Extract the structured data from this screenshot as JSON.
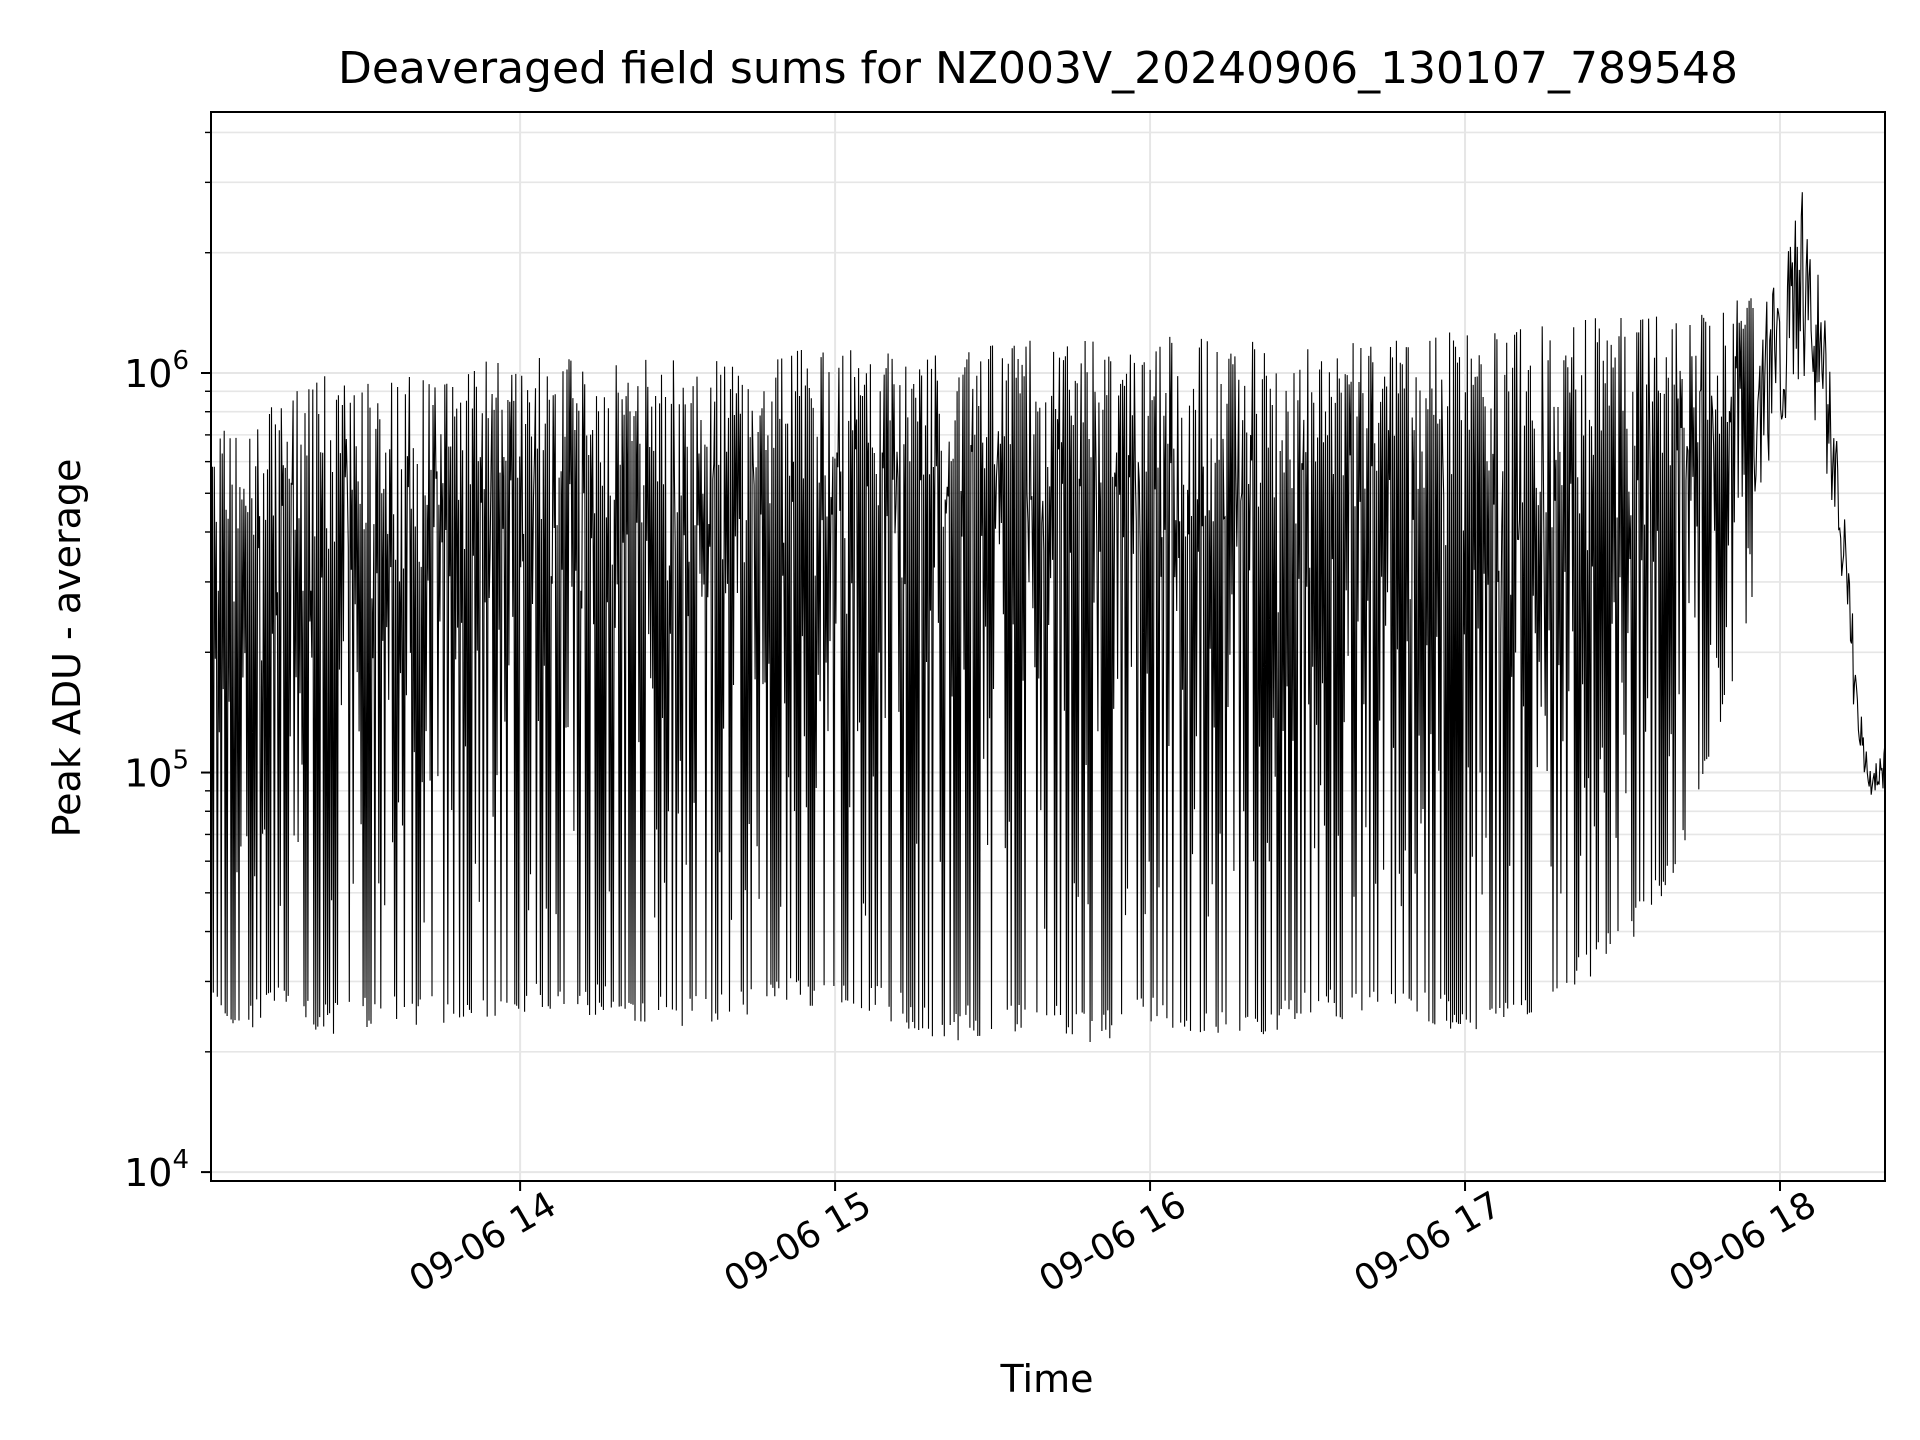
{
  "chart_data": {
    "type": "line",
    "title": "Deaveraged field sums for NZ003V_20240906_130107_789548",
    "xlabel": "Time",
    "ylabel": "Peak ADU - average",
    "yscale": "log",
    "ylim": [
      9500,
      4500000
    ],
    "xlim": [
      "2024-09-06 13:01:07",
      "2024-09-06 18:20:00"
    ],
    "grid": true,
    "line_color": "#000000",
    "x_ticks": [
      {
        "value": "2024-09-06 14:00",
        "label": "09-06 14"
      },
      {
        "value": "2024-09-06 15:00",
        "label": "09-06 15"
      },
      {
        "value": "2024-09-06 16:00",
        "label": "09-06 16"
      },
      {
        "value": "2024-09-06 17:00",
        "label": "09-06 17"
      },
      {
        "value": "2024-09-06 18:00",
        "label": "09-06 18"
      }
    ],
    "y_ticks": [
      {
        "value": 10000,
        "base": "10",
        "exp": "4"
      },
      {
        "value": 100000,
        "base": "10",
        "exp": "5"
      },
      {
        "value": 1000000,
        "base": "10",
        "exp": "6"
      }
    ],
    "series": [
      {
        "x": [
          "2024-09-06 13:01",
          "2024-09-06 13:07",
          "2024-09-06 13:15",
          "2024-09-06 13:23",
          "2024-09-06 13:31",
          "2024-09-06 13:40",
          "2024-09-06 13:50",
          "2024-09-06 14:00",
          "2024-09-06 14:10",
          "2024-09-06 14:20",
          "2024-09-06 14:30",
          "2024-09-06 14:40",
          "2024-09-06 14:50",
          "2024-09-06 15:00",
          "2024-09-06 15:10",
          "2024-09-06 15:20",
          "2024-09-06 15:30",
          "2024-09-06 15:40",
          "2024-09-06 15:50",
          "2024-09-06 16:00",
          "2024-09-06 16:10",
          "2024-09-06 16:20",
          "2024-09-06 16:30",
          "2024-09-06 16:40",
          "2024-09-06 16:50",
          "2024-09-06 17:00",
          "2024-09-06 17:10",
          "2024-09-06 17:20",
          "2024-09-06 17:30",
          "2024-09-06 17:40",
          "2024-09-06 17:50",
          "2024-09-06 18:00",
          "2024-09-06 18:05",
          "2024-09-06 18:08",
          "2024-09-06 18:11",
          "2024-09-06 18:13",
          "2024-09-06 18:15",
          "2024-09-06 18:17",
          "2024-09-06 18:20"
        ],
        "high": [
          800000,
          700000,
          900000,
          1000000,
          1000000,
          1000000,
          1100000,
          1100000,
          1100000,
          1100000,
          1100000,
          1100000,
          1150000,
          1150000,
          1200000,
          1200000,
          1200000,
          1250000,
          1250000,
          1250000,
          1250000,
          1200000,
          1150000,
          1200000,
          1250000,
          1300000,
          1300000,
          1350000,
          1400000,
          1400000,
          1500000,
          1700000,
          3200000,
          1700000,
          700000,
          350000,
          160000,
          100000,
          120000
        ],
        "low": [
          25000,
          22000,
          25000,
          22000,
          23000,
          23000,
          24000,
          25000,
          25000,
          24000,
          23000,
          23000,
          26000,
          25000,
          24000,
          21000,
          22000,
          22000,
          21000,
          23000,
          22000,
          21000,
          24000,
          23000,
          24000,
          22000,
          24000,
          28000,
          35000,
          55000,
          150000,
          500000,
          600000,
          400000,
          300000,
          160000,
          90000,
          80000,
          80000
        ]
      }
    ]
  }
}
